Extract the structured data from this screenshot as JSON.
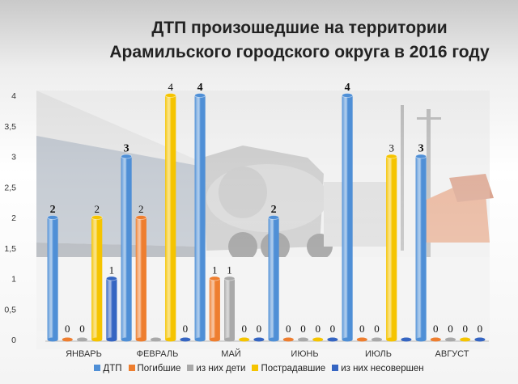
{
  "chart_data": {
    "type": "bar",
    "title": "ДТП произошедшие на территории\nАрамильского городского округа в 2016 году",
    "categories": [
      "ЯНВАРЬ",
      "ФЕВРАЛЬ",
      "МАЙ",
      "ИЮНЬ",
      "ИЮЛЬ",
      "АВГУСТ"
    ],
    "series": [
      {
        "name": "ДТП",
        "color": "#4f8fd6",
        "values": [
          2,
          3,
          4,
          2,
          4,
          3
        ]
      },
      {
        "name": "Погибшие",
        "color": "#ee7e2f",
        "values": [
          0,
          2,
          1,
          0,
          0,
          0
        ]
      },
      {
        "name": "из них дети",
        "color": "#a9a9a9",
        "values": [
          0,
          0,
          1,
          0,
          0,
          0
        ]
      },
      {
        "name": "Пострадавшие",
        "color": "#f5c400",
        "values": [
          2,
          4,
          0,
          0,
          3,
          0
        ]
      },
      {
        "name": "из них несовершен",
        "color": "#3565c2",
        "values": [
          1,
          0,
          0,
          0,
          0,
          0
        ]
      }
    ],
    "ylim": [
      0,
      4
    ],
    "yticks": [
      "0",
      "0,5",
      "1",
      "1,5",
      "2",
      "2,5",
      "3",
      "3,5",
      "4"
    ],
    "data_labels_shown": [
      [
        true,
        true,
        true,
        true,
        true
      ],
      [
        true,
        true,
        false,
        true,
        true
      ],
      [
        true,
        true,
        true,
        true,
        true
      ],
      [
        true,
        true,
        true,
        true,
        true
      ],
      [
        true,
        true,
        true,
        true,
        false
      ],
      [
        true,
        true,
        true,
        true,
        true
      ]
    ],
    "grid": false,
    "legend_position": "bottom",
    "background": "photo of a traffic accident with a concrete mixer truck"
  }
}
